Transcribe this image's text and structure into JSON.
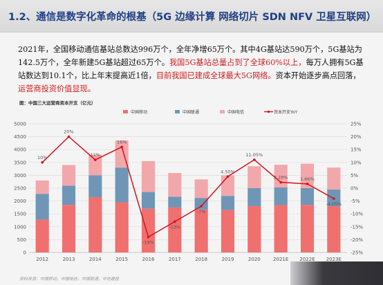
{
  "header": {
    "title": "1.2、通信是数字化革命的根基（5G 边缘计算 网络切片 SDN NFV 卫星互联网）"
  },
  "body": {
    "seg1": "2021年，全国移动通信基站总数达996万个，全年净增65万个。其中4G基站达590万个，5G基站为142.5万个，全年新建5G基站超过65万个。",
    "seg2": "我国5G基站总量占到了全球60%以上，",
    "seg3": "每万人拥有5G基站数达到10.1个，比上年末提高近1倍，",
    "seg4": "目前我国已建成全球最大5G网络。",
    "seg5": "资本开始逐步高点回落，",
    "seg6": "运营商投资价值显现。"
  },
  "figure_caption": "图：中国三大运营商资本开支（亿元）",
  "source_note": "资料来源：中国移动，中国电信，中国联通，中信建投",
  "colors": {
    "cmcc": "#f0706f",
    "cu": "#6f96b6",
    "ct": "#f2a8ab",
    "growth": "#d6111c",
    "title": "#1f3f84"
  },
  "chart_data": {
    "type": "bar",
    "stacked": true,
    "categories": [
      "2012",
      "2013",
      "2014",
      "2015",
      "2016",
      "2017",
      "2018",
      "2019",
      "2020",
      "2021E",
      "2022E",
      "2023E"
    ],
    "series": [
      {
        "name": "中国移动",
        "values": [
          1280,
          1850,
          2150,
          1950,
          1700,
          1750,
          1670,
          1650,
          1800,
          1840,
          1850,
          1800
        ]
      },
      {
        "name": "中国联通",
        "values": [
          1000,
          750,
          850,
          1350,
          650,
          420,
          450,
          550,
          700,
          690,
          650,
          650
        ]
      },
      {
        "name": "中国电信",
        "values": [
          520,
          800,
          800,
          1050,
          1200,
          920,
          720,
          800,
          850,
          880,
          950,
          850
        ]
      }
    ],
    "line_series": {
      "name": "资本开支YoY",
      "axis": "right",
      "values": [
        10,
        20,
        11,
        16,
        -19,
        -13,
        -7,
        4.5,
        11.05,
        2.28,
        1.66,
        -4.05
      ],
      "labels": [
        "10%",
        "20%",
        "11%",
        "16%",
        "-19%",
        "-13%",
        "-7%",
        "4.50%",
        "11.05%",
        "2.28%",
        "1.66%",
        "-4.05%"
      ]
    },
    "ylim_left": [
      0,
      5000
    ],
    "yticks_left": [
      "0",
      "500",
      "1000",
      "1500",
      "2000",
      "2500",
      "3000",
      "3500",
      "4000",
      "4500",
      "5000"
    ],
    "ylim_right": [
      -25,
      25
    ],
    "yticks_right": [
      "-25%",
      "-20%",
      "-15%",
      "-10%",
      "-5%",
      "0%",
      "5%",
      "10%",
      "15%",
      "20%",
      "25%"
    ],
    "legend_position": "top",
    "grid": true
  }
}
